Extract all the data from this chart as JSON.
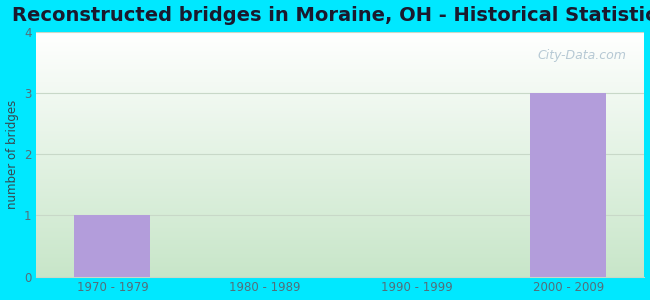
{
  "title": "Reconstructed bridges in Moraine, OH - Historical Statistics",
  "categories": [
    "1970 - 1979",
    "1980 - 1989",
    "1990 - 1999",
    "2000 - 2009"
  ],
  "values": [
    1,
    0,
    0,
    3
  ],
  "bar_color": "#b39ddb",
  "ylabel": "number of bridges",
  "ylim": [
    0,
    4
  ],
  "yticks": [
    0,
    1,
    2,
    3,
    4
  ],
  "background_outer": "#00e8ff",
  "gradient_top": "#ffffff",
  "gradient_bottom": "#c8e6c9",
  "title_fontsize": 14,
  "title_color": "#1a1a2e",
  "axis_label_color": "#37474f",
  "tick_color": "#546e7a",
  "grid_color": "#c8d8c8",
  "watermark": "City-Data.com"
}
